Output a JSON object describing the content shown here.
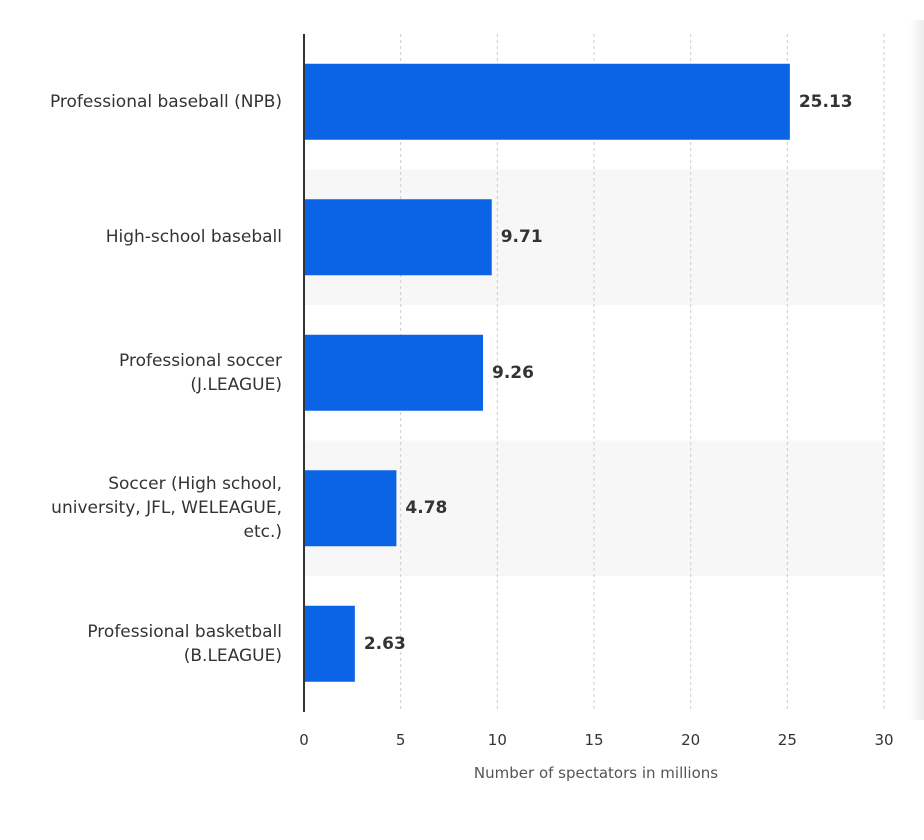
{
  "chart_data": {
    "type": "bar",
    "orientation": "horizontal",
    "categories": [
      "Professional baseball (NPB)",
      "High-school baseball",
      "Professional soccer\n(J.LEAGUE)",
      "Soccer (High school,\nuniversity, JFL, WELEAGUE,\netc.)",
      "Professional basketball\n(B.LEAGUE)"
    ],
    "values": [
      25.13,
      9.71,
      9.26,
      4.78,
      2.63
    ],
    "value_labels": [
      "25.13",
      "9.71",
      "9.26",
      "4.78",
      "2.63"
    ],
    "xlabel": "Number of spectators in millions",
    "xlim": [
      0,
      30
    ],
    "xticks": [
      "0",
      "5",
      "10",
      "15",
      "20",
      "25",
      "30"
    ],
    "grid": true,
    "bar_color": "#0b63e5"
  }
}
